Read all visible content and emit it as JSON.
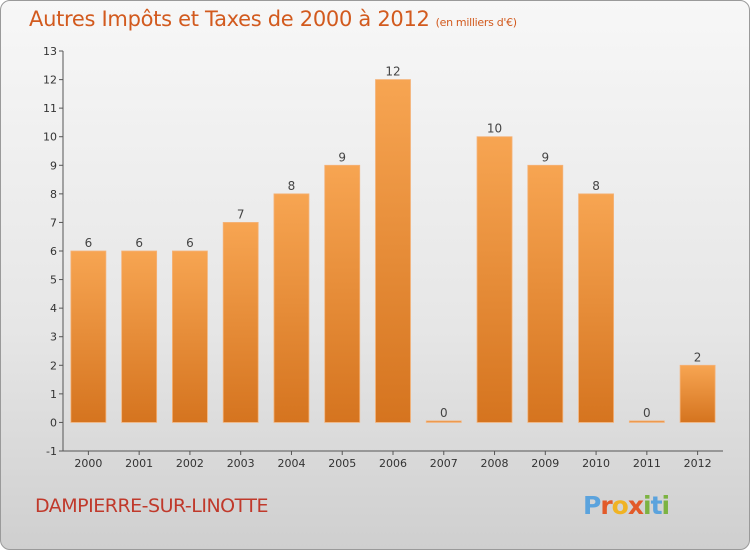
{
  "title": "Autres Impôts et Taxes de 2000 à 2012",
  "subtitle": "(en milliers d'€)",
  "commune": "DAMPIERRE-SUR-LINOTTE",
  "logo": {
    "letters": [
      "P",
      "r",
      "o",
      "x",
      "i",
      "t",
      "i"
    ],
    "colors": [
      "#5ba3dd",
      "#e25a29",
      "#f0b323",
      "#e25a29",
      "#7cb342",
      "#5ba3dd",
      "#7cb342"
    ]
  },
  "chart_data": {
    "type": "bar",
    "categories": [
      "2000",
      "2001",
      "2002",
      "2003",
      "2004",
      "2005",
      "2006",
      "2007",
      "2008",
      "2009",
      "2010",
      "2011",
      "2012"
    ],
    "values": [
      6,
      6,
      6,
      7,
      8,
      9,
      12,
      0,
      10,
      9,
      8,
      0,
      2
    ],
    "y_ticks": [
      "-1",
      "0",
      "1",
      "2",
      "3",
      "4",
      "5",
      "6",
      "7",
      "8",
      "9",
      "10",
      "11",
      "12",
      "13"
    ],
    "ylim": [
      -1,
      13
    ],
    "bar_color": "#f0913b",
    "grid": false
  }
}
